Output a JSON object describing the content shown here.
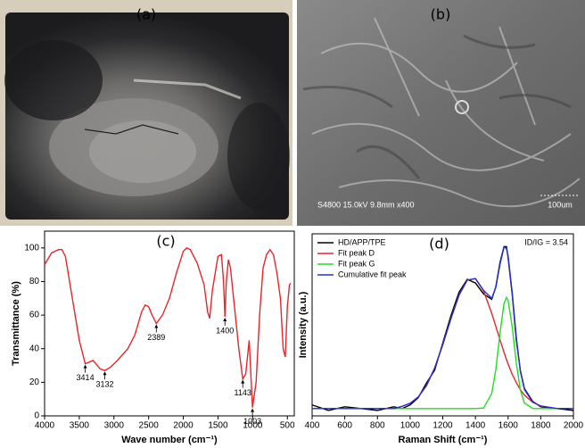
{
  "images": [
    {
      "label": "(a)"
    },
    {
      "label": "(b)",
      "caption": "S4800 15.0kV 9.8mm x400",
      "scale_bar": "100um"
    }
  ],
  "chart_data": [
    {
      "type": "line",
      "label": "(c)",
      "x_label": "Wave number (cm⁻¹)",
      "y_label": "Transmittance (%)",
      "x": [
        4000,
        3900,
        3800,
        3750,
        3700,
        3600,
        3500,
        3414,
        3300,
        3200,
        3132,
        3050,
        2950,
        2800,
        2700,
        2600,
        2550,
        2500,
        2450,
        2400,
        2389,
        2300,
        2200,
        2100,
        2000,
        1950,
        1900,
        1800,
        1700,
        1650,
        1620,
        1580,
        1500,
        1450,
        1420,
        1400,
        1380,
        1350,
        1320,
        1250,
        1200,
        1143,
        1100,
        1050,
        1003,
        950,
        900,
        850,
        800,
        750,
        700,
        650,
        600,
        560,
        530,
        500,
        470,
        450
      ],
      "values": [
        90,
        97,
        99,
        99,
        95,
        70,
        45,
        31,
        33,
        28,
        27,
        29,
        33,
        40,
        48,
        62,
        66,
        65,
        60,
        56,
        55,
        60,
        70,
        85,
        98,
        100,
        99,
        91,
        78,
        62,
        58,
        75,
        95,
        96,
        80,
        59,
        80,
        93,
        88,
        60,
        40,
        22,
        25,
        45,
        5,
        20,
        60,
        88,
        96,
        99,
        96,
        85,
        70,
        40,
        35,
        65,
        78,
        79
      ],
      "color": "#e8262a",
      "annotations": [
        "3414",
        "3132",
        "2389",
        "1400",
        "1143",
        "1003"
      ],
      "xlim": [
        4000,
        400
      ],
      "xticks": [
        4000,
        3500,
        3000,
        2500,
        2000,
        1500,
        1000,
        500
      ],
      "ylim": [
        0,
        110
      ],
      "yticks": [
        0,
        20,
        40,
        60,
        80,
        100
      ]
    },
    {
      "type": "line",
      "label": "(d)",
      "x_label": "Raman Shift (cm⁻¹)",
      "y_label": "Intensity (a.u.)",
      "annotation": "ID/IG = 3.54",
      "legend": "upper left",
      "x": [
        400,
        500,
        600,
        700,
        800,
        900,
        950,
        1000,
        1050,
        1100,
        1150,
        1200,
        1250,
        1300,
        1350,
        1400,
        1450,
        1500,
        1525,
        1550,
        1575,
        1590,
        1600,
        1625,
        1650,
        1675,
        1700,
        1750,
        1800,
        1900,
        2000
      ],
      "series": [
        {
          "name": "HD/APP/TPE",
          "color": "#000000",
          "values": [
            6,
            3,
            5,
            4,
            3,
            5,
            4,
            6,
            10,
            18,
            25,
            40,
            55,
            68,
            75,
            73,
            67,
            64,
            71,
            84,
            93,
            93,
            87,
            67,
            42,
            25,
            15,
            8,
            5,
            4,
            3
          ]
        },
        {
          "name": "Fit peak D",
          "color": "#e8262a",
          "values": [
            4,
            4,
            4,
            4,
            4,
            4,
            5.2,
            6.9,
            10.4,
            16.6,
            26.2,
            39.1,
            53.4,
            66.4,
            74.6,
            75.4,
            68.6,
            56.3,
            49.1,
            41.9,
            35.0,
            31.0,
            28.5,
            22.9,
            18.3,
            14.4,
            11.4,
            7.5,
            5.4,
            4,
            4
          ]
        },
        {
          "name": "Fit peak G",
          "color": "#22dd22",
          "values": [
            4,
            4,
            4,
            4,
            4,
            4,
            4,
            4,
            4,
            4,
            4,
            4,
            4,
            4,
            4,
            4,
            4.3,
            12.3,
            25.5,
            45.1,
            61.7,
            65,
            63.5,
            49.1,
            29.1,
            14.2,
            7.1,
            4.1,
            4,
            4,
            4
          ]
        },
        {
          "name": "Cumulative fit peak",
          "color": "#2233cc",
          "values": [
            4,
            4,
            4,
            4,
            4,
            4,
            5.2,
            6.9,
            10.4,
            16.6,
            26.2,
            39.1,
            53.4,
            66.4,
            74.6,
            75.4,
            68.9,
            64.6,
            70.6,
            83.0,
            92.7,
            92.0,
            88.0,
            68.0,
            43.4,
            24.6,
            14.5,
            7.6,
            5.4,
            4,
            4
          ]
        }
      ],
      "xlim": [
        400,
        2000
      ],
      "xticks": [
        400,
        600,
        800,
        1000,
        1200,
        1400,
        1600,
        1800,
        2000
      ],
      "ylim": [
        0,
        100
      ]
    }
  ]
}
